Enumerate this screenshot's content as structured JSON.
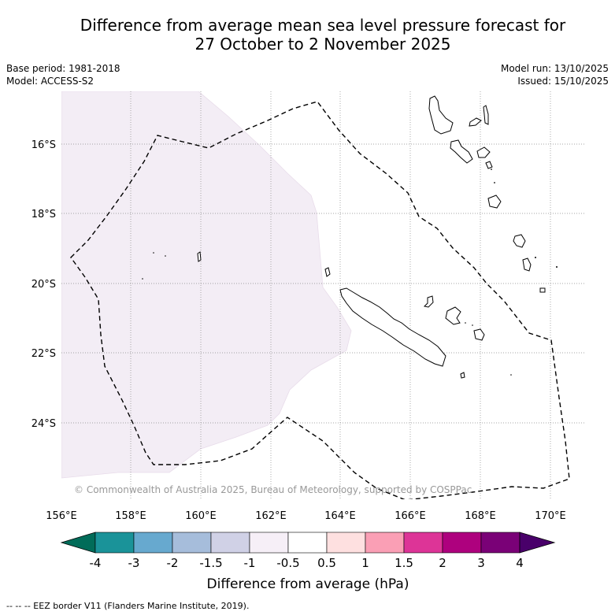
{
  "title_line1": "Difference from average mean sea level pressure forecast for",
  "title_line2": "27 October to 2 November 2025",
  "base_period": "Base period: 1981-2018",
  "model": "Model: ACCESS-S2",
  "model_run": "Model run: 13/10/2025",
  "issued": "Issued: 15/10/2025",
  "copyright": "© Commonwealth of Australia 2025, Bureau of Meteorology, supported by COSPPac",
  "lat_labels": [
    "16°S",
    "18°S",
    "20°S",
    "22°S",
    "24°S"
  ],
  "lon_labels": [
    "156°E",
    "158°E",
    "160°E",
    "162°E",
    "164°E",
    "166°E",
    "168°E",
    "170°E"
  ],
  "colorbar": {
    "title": "Difference from average (hPa)",
    "ticks": [
      "-4",
      "-3",
      "-2",
      "-1.5",
      "-1",
      "-0.5",
      "0.5",
      "1",
      "1.5",
      "2",
      "3",
      "4"
    ],
    "colors": [
      "#1a9399",
      "#67a9cf",
      "#a6bddb",
      "#d0d1e6",
      "#f6eff7",
      "#ffffff",
      "#fee0e0",
      "#fa9fb5",
      "#dd3497",
      "#ae017e",
      "#7a0177"
    ],
    "under_color": "#016c59",
    "over_color": "#49006a"
  },
  "shaded_color": "#f3edf5",
  "legend_text": "--  --  -- EEZ border V11 (Flanders Marine Institute, 2019)."
}
